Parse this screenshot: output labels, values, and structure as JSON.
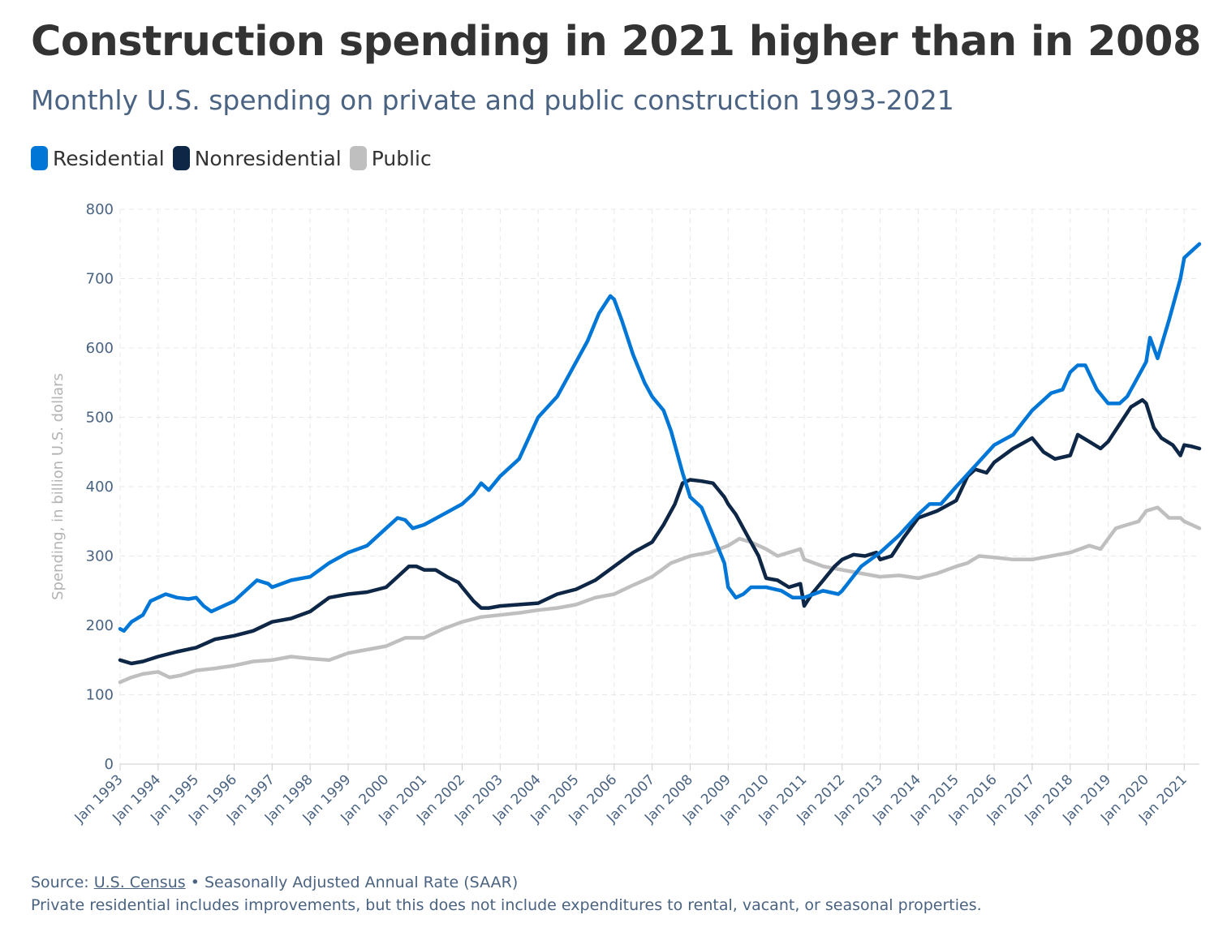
{
  "title": "Construction spending in 2021 higher than in 2008",
  "subtitle": "Monthly U.S. spending on private and public construction 1993-2021",
  "legend": [
    {
      "label": "Residential",
      "color": "#0077d6"
    },
    {
      "label": "Nonresidential",
      "color": "#0f2747"
    },
    {
      "label": "Public",
      "color": "#bfbfbf"
    }
  ],
  "footer": {
    "source_prefix": "Source:",
    "source_link": "U.S. Census",
    "source_suffix": "• Seasonally Adjusted Annual Rate (SAAR)",
    "note": "Private residential includes improvements, but this does not include expenditures to rental, vacant, or seasonal properties."
  },
  "chart_data": {
    "type": "line",
    "title": "Construction spending in 2021 higher than in 2008",
    "xlabel": "",
    "ylabel": "Spending, in billion U.S. dollars",
    "ylim": [
      0,
      800
    ],
    "yticks": [
      0,
      100,
      200,
      300,
      400,
      500,
      600,
      700,
      800
    ],
    "xlim": [
      1993.0,
      2021.4
    ],
    "xticks": [
      1993,
      1994,
      1995,
      1996,
      1997,
      1998,
      1999,
      2000,
      2001,
      2002,
      2003,
      2004,
      2005,
      2006,
      2007,
      2008,
      2009,
      2010,
      2011,
      2012,
      2013,
      2014,
      2015,
      2016,
      2017,
      2018,
      2019,
      2020,
      2021
    ],
    "xtick_labels": [
      "Jan 1993",
      "Jan 1994",
      "Jan 1995",
      "Jan 1996",
      "Jan 1997",
      "Jan 1998",
      "Jan 1999",
      "Jan 2000",
      "Jan 2001",
      "Jan 2002",
      "Jan 2003",
      "Jan 2004",
      "Jan 2005",
      "Jan 2006",
      "Jan 2007",
      "Jan 2008",
      "Jan 2009",
      "Jan 2010",
      "Jan 2011",
      "Jan 2012",
      "Jan 2013",
      "Jan 2014",
      "Jan 2015",
      "Jan 2016",
      "Jan 2017",
      "Jan 2018",
      "Jan 2019",
      "Jan 2020",
      "Jan 2021"
    ],
    "grid": true,
    "series": [
      {
        "name": "Residential",
        "color": "#0077d6",
        "x": [
          1993.0,
          1993.1,
          1993.3,
          1993.6,
          1993.8,
          1994.0,
          1994.2,
          1994.5,
          1994.8,
          1995.0,
          1995.2,
          1995.4,
          1995.6,
          1996.0,
          1996.4,
          1996.6,
          1996.9,
          1997.0,
          1997.5,
          1998.0,
          1998.5,
          1999.0,
          1999.5,
          2000.0,
          2000.3,
          2000.5,
          2000.7,
          2001.0,
          2001.5,
          2002.0,
          2002.3,
          2002.5,
          2002.7,
          2003.0,
          2003.5,
          2004.0,
          2004.5,
          2005.0,
          2005.3,
          2005.6,
          2005.9,
          2006.0,
          2006.2,
          2006.5,
          2006.8,
          2007.0,
          2007.3,
          2007.5,
          2007.8,
          2008.0,
          2008.3,
          2008.6,
          2008.9,
          2009.0,
          2009.2,
          2009.4,
          2009.6,
          2010.0,
          2010.4,
          2010.7,
          2011.0,
          2011.5,
          2011.9,
          2012.0,
          2012.5,
          2013.0,
          2013.5,
          2014.0,
          2014.3,
          2014.6,
          2015.0,
          2015.5,
          2016.0,
          2016.5,
          2017.0,
          2017.5,
          2017.8,
          2018.0,
          2018.2,
          2018.4,
          2018.7,
          2019.0,
          2019.3,
          2019.5,
          2019.8,
          2020.0,
          2020.1,
          2020.3,
          2020.6,
          2020.9,
          2021.0,
          2021.2,
          2021.4
        ],
        "values": [
          195,
          192,
          205,
          215,
          235,
          240,
          245,
          240,
          238,
          240,
          228,
          220,
          225,
          235,
          255,
          265,
          260,
          255,
          265,
          270,
          290,
          305,
          315,
          340,
          355,
          352,
          340,
          345,
          360,
          375,
          390,
          405,
          395,
          415,
          440,
          500,
          530,
          580,
          610,
          650,
          675,
          670,
          640,
          590,
          550,
          530,
          510,
          480,
          420,
          385,
          370,
          330,
          290,
          255,
          240,
          245,
          255,
          255,
          250,
          240,
          240,
          250,
          245,
          250,
          285,
          305,
          330,
          360,
          375,
          375,
          400,
          430,
          460,
          475,
          510,
          535,
          540,
          565,
          575,
          575,
          540,
          520,
          520,
          530,
          560,
          580,
          615,
          585,
          640,
          700,
          730,
          740,
          750
        ]
      },
      {
        "name": "Nonresidential",
        "color": "#0f2747",
        "x": [
          1993.0,
          1993.3,
          1993.6,
          1994.0,
          1994.5,
          1995.0,
          1995.5,
          1996.0,
          1996.5,
          1997.0,
          1997.5,
          1998.0,
          1998.5,
          1999.0,
          1999.5,
          2000.0,
          2000.3,
          2000.6,
          2000.8,
          2001.0,
          2001.3,
          2001.6,
          2001.9,
          2002.0,
          2002.3,
          2002.5,
          2002.7,
          2003.0,
          2003.5,
          2004.0,
          2004.5,
          2005.0,
          2005.5,
          2006.0,
          2006.5,
          2007.0,
          2007.3,
          2007.6,
          2007.8,
          2008.0,
          2008.3,
          2008.6,
          2008.9,
          2009.0,
          2009.2,
          2009.5,
          2009.8,
          2010.0,
          2010.3,
          2010.6,
          2010.9,
          2011.0,
          2011.2,
          2011.5,
          2011.8,
          2012.0,
          2012.3,
          2012.6,
          2012.9,
          2013.0,
          2013.3,
          2013.6,
          2014.0,
          2014.5,
          2015.0,
          2015.3,
          2015.5,
          2015.8,
          2016.0,
          2016.5,
          2017.0,
          2017.3,
          2017.6,
          2018.0,
          2018.2,
          2018.5,
          2018.8,
          2019.0,
          2019.3,
          2019.6,
          2019.9,
          2020.0,
          2020.2,
          2020.4,
          2020.7,
          2020.9,
          2021.0,
          2021.2,
          2021.4
        ],
        "values": [
          150,
          145,
          148,
          155,
          162,
          168,
          180,
          185,
          192,
          205,
          210,
          220,
          240,
          245,
          248,
          255,
          270,
          285,
          285,
          280,
          280,
          270,
          262,
          255,
          235,
          225,
          225,
          228,
          230,
          232,
          245,
          252,
          265,
          285,
          305,
          320,
          345,
          375,
          405,
          410,
          408,
          405,
          385,
          375,
          360,
          330,
          300,
          268,
          265,
          255,
          260,
          228,
          245,
          265,
          285,
          295,
          302,
          300,
          305,
          295,
          300,
          325,
          355,
          365,
          380,
          415,
          425,
          420,
          435,
          455,
          470,
          450,
          440,
          445,
          475,
          465,
          455,
          465,
          490,
          515,
          525,
          520,
          485,
          470,
          460,
          445,
          460,
          458,
          455
        ]
      },
      {
        "name": "Public",
        "color": "#bfbfbf",
        "x": [
          1993.0,
          1993.3,
          1993.6,
          1994.0,
          1994.3,
          1994.6,
          1995.0,
          1995.5,
          1996.0,
          1996.5,
          1997.0,
          1997.5,
          1998.0,
          1998.5,
          1999.0,
          1999.5,
          2000.0,
          2000.5,
          2001.0,
          2001.5,
          2002.0,
          2002.5,
          2003.0,
          2003.5,
          2004.0,
          2004.5,
          2005.0,
          2005.5,
          2006.0,
          2006.5,
          2007.0,
          2007.5,
          2008.0,
          2008.5,
          2009.0,
          2009.3,
          2009.6,
          2010.0,
          2010.3,
          2010.6,
          2010.9,
          2011.0,
          2011.5,
          2012.0,
          2012.5,
          2013.0,
          2013.5,
          2014.0,
          2014.5,
          2015.0,
          2015.3,
          2015.6,
          2016.0,
          2016.5,
          2017.0,
          2017.5,
          2018.0,
          2018.5,
          2018.8,
          2019.0,
          2019.2,
          2019.5,
          2019.8,
          2020.0,
          2020.3,
          2020.6,
          2020.9,
          2021.0,
          2021.2,
          2021.4
        ],
        "values": [
          118,
          125,
          130,
          133,
          125,
          128,
          135,
          138,
          142,
          148,
          150,
          155,
          152,
          150,
          160,
          165,
          170,
          182,
          182,
          195,
          205,
          212,
          215,
          218,
          222,
          225,
          230,
          240,
          245,
          258,
          270,
          290,
          300,
          305,
          315,
          325,
          320,
          310,
          300,
          305,
          310,
          295,
          285,
          280,
          275,
          270,
          272,
          268,
          275,
          285,
          290,
          300,
          298,
          295,
          295,
          300,
          305,
          315,
          310,
          325,
          340,
          345,
          350,
          365,
          370,
          355,
          355,
          350,
          345,
          340
        ]
      }
    ]
  }
}
